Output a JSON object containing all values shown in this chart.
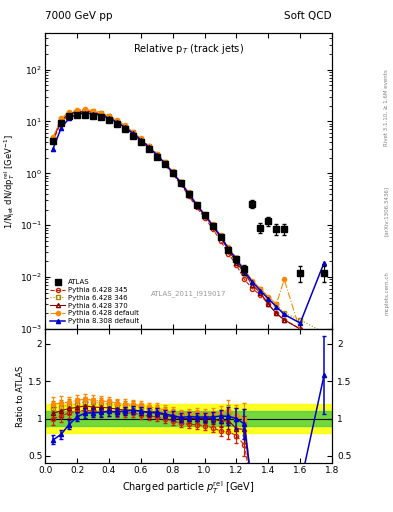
{
  "title_left": "7000 GeV pp",
  "title_right": "Soft QCD",
  "plot_title": "Relative p_T (track jets)",
  "xlabel": "Charged particle $p_T^{\\rm rel}$ [GeV]",
  "ylabel_main": "1/N$_{\\rm jet}$ dN/dp$_T^{\\rm rel}$ [GeV$^{-1}$]",
  "ylabel_ratio": "Ratio to ATLAS",
  "right_label1": "Rivet 3.1.10, ≥ 1.6M events",
  "right_label2": "[arXiv:1306.3436]",
  "right_label3": "mcplots.cern.ch",
  "atlas_label": "ATLAS_2011_I919017",
  "x_data": [
    0.05,
    0.1,
    0.15,
    0.2,
    0.25,
    0.3,
    0.35,
    0.4,
    0.45,
    0.5,
    0.55,
    0.6,
    0.65,
    0.7,
    0.75,
    0.8,
    0.85,
    0.9,
    0.95,
    1.0,
    1.05,
    1.1,
    1.15,
    1.2,
    1.25,
    1.3,
    1.35,
    1.4,
    1.45,
    1.5,
    1.6,
    1.75
  ],
  "atlas_y": [
    4.2,
    9.5,
    12.5,
    13.5,
    13.5,
    13.0,
    12.0,
    10.5,
    8.8,
    7.0,
    5.3,
    4.0,
    2.95,
    2.1,
    1.48,
    1.0,
    0.65,
    0.4,
    0.24,
    0.155,
    0.098,
    0.06,
    0.034,
    0.022,
    0.014,
    0.26,
    0.09,
    0.12,
    0.085,
    0.085,
    0.012,
    0.012
  ],
  "atlas_yerr": [
    0.35,
    0.7,
    0.8,
    0.8,
    0.8,
    0.7,
    0.65,
    0.55,
    0.45,
    0.35,
    0.27,
    0.2,
    0.15,
    0.11,
    0.08,
    0.055,
    0.036,
    0.022,
    0.014,
    0.009,
    0.007,
    0.005,
    0.004,
    0.003,
    0.003,
    0.05,
    0.02,
    0.025,
    0.02,
    0.02,
    0.004,
    0.004
  ],
  "py6_345_y": [
    4.2,
    9.8,
    13.5,
    14.8,
    15.0,
    14.3,
    13.2,
    11.5,
    9.5,
    7.5,
    5.7,
    4.2,
    3.05,
    2.15,
    1.48,
    0.97,
    0.61,
    0.37,
    0.22,
    0.14,
    0.086,
    0.05,
    0.028,
    0.017,
    0.009,
    0.006,
    0.0045,
    0.003,
    0.002,
    0.0015,
    0.001,
    0.0008
  ],
  "py6_346_y": [
    4.8,
    11.0,
    14.8,
    16.2,
    16.5,
    15.8,
    14.5,
    12.6,
    10.4,
    8.2,
    6.2,
    4.6,
    3.3,
    2.35,
    1.62,
    1.07,
    0.68,
    0.42,
    0.25,
    0.16,
    0.1,
    0.062,
    0.036,
    0.022,
    0.013,
    0.008,
    0.006,
    0.004,
    0.003,
    0.002,
    0.0015,
    0.00085
  ],
  "py6_370_y": [
    4.5,
    10.5,
    14.2,
    15.5,
    15.8,
    15.0,
    13.8,
    12.0,
    9.9,
    7.8,
    5.9,
    4.4,
    3.18,
    2.25,
    1.55,
    1.02,
    0.65,
    0.4,
    0.24,
    0.155,
    0.098,
    0.058,
    0.033,
    0.019,
    0.012,
    0.007,
    0.005,
    0.003,
    0.002,
    0.0015,
    0.001,
    0.0008
  ],
  "py6_def_y": [
    5.0,
    11.5,
    15.2,
    16.8,
    17.0,
    16.2,
    14.8,
    12.9,
    10.6,
    8.4,
    6.3,
    4.7,
    3.4,
    2.4,
    1.65,
    1.09,
    0.69,
    0.43,
    0.26,
    0.165,
    0.105,
    0.065,
    0.038,
    0.023,
    0.014,
    0.0085,
    0.006,
    0.0042,
    0.003,
    0.009,
    0.0009,
    0.0003
  ],
  "py8_def_y": [
    3.0,
    7.5,
    11.5,
    13.8,
    14.5,
    14.0,
    13.0,
    11.5,
    9.6,
    7.7,
    5.9,
    4.4,
    3.2,
    2.28,
    1.57,
    1.04,
    0.66,
    0.41,
    0.245,
    0.158,
    0.1,
    0.062,
    0.035,
    0.022,
    0.013,
    0.008,
    0.0055,
    0.0038,
    0.0027,
    0.0019,
    0.0013,
    0.019
  ],
  "band_yellow_lo": 0.8,
  "band_yellow_hi": 1.2,
  "band_green_lo": 0.9,
  "band_green_hi": 1.1,
  "color_atlas": "#000000",
  "color_py6_345": "#cc2200",
  "color_py6_346": "#aa8800",
  "color_py6_370": "#880000",
  "color_py6_def": "#ff8800",
  "color_py8_def": "#0000cc",
  "color_band_yellow": "#ffff00",
  "color_band_green": "#44cc44",
  "xlim": [
    0.0,
    1.8
  ],
  "ylim_main": [
    0.001,
    500
  ],
  "ylim_ratio": [
    0.4,
    2.2
  ],
  "ratio_yticks": [
    0.5,
    1.0,
    1.5,
    2.0
  ]
}
